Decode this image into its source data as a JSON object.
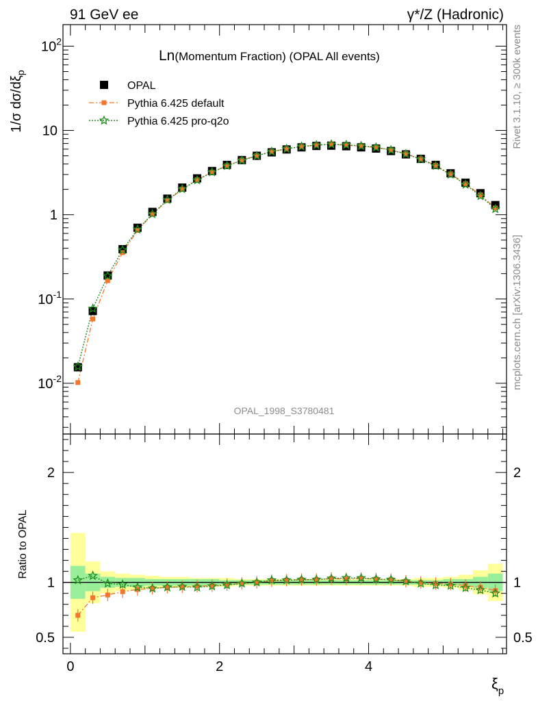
{
  "header": {
    "left": "91 GeV ee",
    "right": "γ*/Z (Hadronic)"
  },
  "side_labels": {
    "top": "Rivet 3.1.10, ≥ 300k events",
    "bottom": "mcplots.cern.ch [arXiv:1306.3436]"
  },
  "chart_data": [
    {
      "type": "scatter",
      "title_main": "Ln",
      "title_rest": "(Momentum Fraction) (OPAL All events)",
      "watermark": "OPAL_1998_S3780481",
      "ylabel": "1/σ dσ/dξp",
      "log_y": true,
      "ylim": [
        0.0025,
        180
      ],
      "xlim": [
        -0.1,
        5.85
      ],
      "ytick_labels": [
        "10^-2",
        "10^-1",
        "1",
        "10",
        "10^2"
      ],
      "legend_position": "top-left",
      "colors": {
        "opal": "#000000",
        "default": "#f2762e",
        "proq2o": "#1e8c1e"
      },
      "x": [
        0.1,
        0.3,
        0.5,
        0.7,
        0.9,
        1.1,
        1.3,
        1.5,
        1.7,
        1.9,
        2.1,
        2.3,
        2.5,
        2.7,
        2.9,
        3.1,
        3.3,
        3.5,
        3.7,
        3.9,
        4.1,
        4.3,
        4.5,
        4.7,
        4.9,
        5.1,
        5.3,
        5.5,
        5.7
      ],
      "series": [
        {
          "name": "OPAL",
          "values": [
            0.0155,
            0.072,
            0.19,
            0.39,
            0.7,
            1.08,
            1.55,
            2.1,
            2.7,
            3.3,
            3.9,
            4.45,
            5.0,
            5.5,
            5.95,
            6.3,
            6.55,
            6.6,
            6.5,
            6.3,
            6.1,
            5.7,
            5.2,
            4.6,
            3.9,
            3.1,
            2.4,
            1.8,
            1.3
          ]
        },
        {
          "name": "Pythia 6.425 default",
          "values": [
            0.0102,
            0.058,
            0.165,
            0.355,
            0.65,
            1.01,
            1.47,
            2.01,
            2.6,
            3.2,
            3.82,
            4.45,
            5.02,
            5.6,
            6.05,
            6.45,
            6.7,
            6.85,
            6.7,
            6.5,
            6.3,
            5.85,
            5.3,
            4.6,
            3.85,
            3.05,
            2.33,
            1.72,
            1.2
          ]
        },
        {
          "name": "Pythia 6.425 pro-q2o",
          "values": [
            0.0158,
            0.077,
            0.188,
            0.382,
            0.67,
            1.02,
            1.5,
            2.02,
            2.57,
            3.2,
            3.8,
            4.4,
            5.0,
            5.6,
            6.05,
            6.45,
            6.7,
            6.85,
            6.75,
            6.55,
            6.3,
            5.85,
            5.25,
            4.55,
            3.8,
            3.0,
            2.28,
            1.67,
            1.17
          ]
        }
      ]
    },
    {
      "type": "scatter",
      "ylabel": "Ratio to OPAL",
      "xlabel": "ξp",
      "ylim": [
        0.35,
        2.35
      ],
      "xlim": [
        -0.1,
        5.85
      ],
      "ytick_labels": [
        "0.5",
        "1",
        "2"
      ],
      "xtick_labels": [
        "0",
        "2",
        "4"
      ],
      "band_yellow": [
        0.45,
        0.19,
        0.1,
        0.08,
        0.07,
        0.06,
        0.05,
        0.05,
        0.04,
        0.04,
        0.04,
        0.03,
        0.03,
        0.03,
        0.03,
        0.03,
        0.03,
        0.03,
        0.03,
        0.03,
        0.03,
        0.03,
        0.03,
        0.04,
        0.04,
        0.05,
        0.07,
        0.11,
        0.17
      ],
      "band_green": [
        0.15,
        0.08,
        0.05,
        0.04,
        0.04,
        0.03,
        0.03,
        0.03,
        0.03,
        0.03,
        0.02,
        0.02,
        0.02,
        0.02,
        0.02,
        0.02,
        0.02,
        0.02,
        0.02,
        0.02,
        0.02,
        0.02,
        0.02,
        0.02,
        0.02,
        0.03,
        0.03,
        0.05,
        0.08
      ],
      "series": [
        {
          "name": "Pythia 6.425 default",
          "values": [
            0.7,
            0.86,
            0.885,
            0.915,
            0.935,
            0.945,
            0.955,
            0.96,
            0.965,
            0.97,
            0.98,
            0.99,
            1.0,
            1.015,
            1.02,
            1.025,
            1.025,
            1.035,
            1.03,
            1.035,
            1.03,
            1.025,
            1.01,
            1.0,
            0.99,
            0.985,
            0.97,
            0.955,
            0.925
          ]
        },
        {
          "name": "Pythia 6.425 pro-q2o",
          "values": [
            1.02,
            1.06,
            0.99,
            0.98,
            0.955,
            0.945,
            0.955,
            0.96,
            0.955,
            0.965,
            0.975,
            0.99,
            1.0,
            1.02,
            1.02,
            1.025,
            1.025,
            1.035,
            1.04,
            1.04,
            1.03,
            1.025,
            1.01,
            0.99,
            0.975,
            0.97,
            0.95,
            0.93,
            0.9
          ]
        }
      ]
    }
  ]
}
